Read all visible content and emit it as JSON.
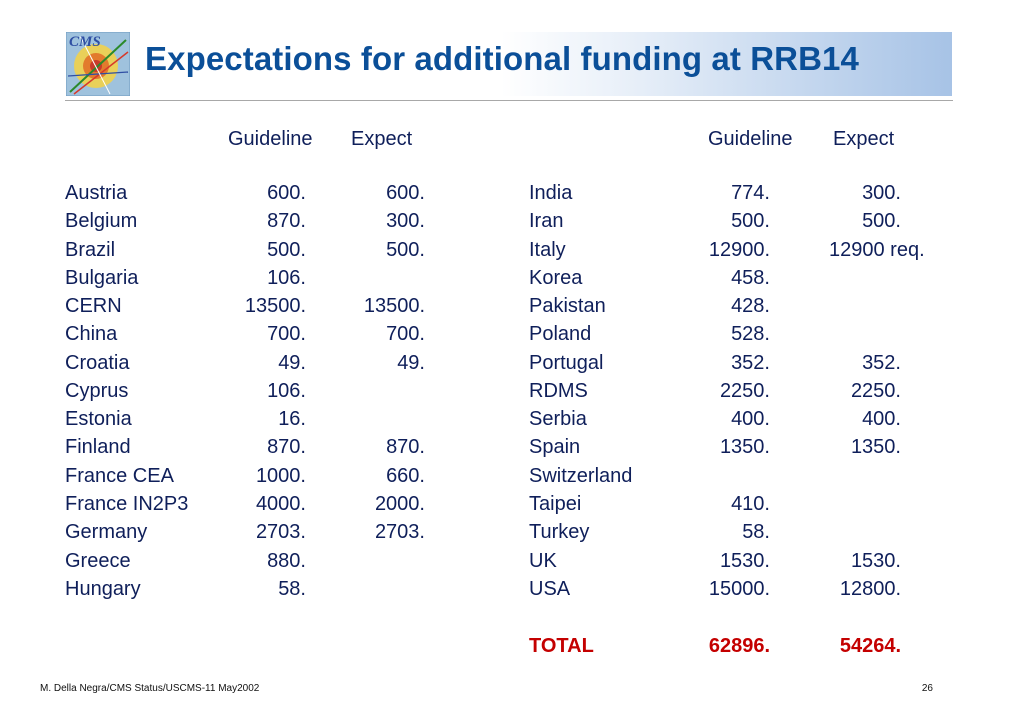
{
  "slide": {
    "title": "Expectations for additional funding at RRB14",
    "logo_text": "CMS",
    "footer": "M. Della Negra/CMS Status/USCMS-11 May2002",
    "page_number": "26"
  },
  "table": {
    "headers": {
      "guideline": "Guideline",
      "expect": "Expect"
    },
    "left": [
      {
        "country": "Austria",
        "guideline": "600.",
        "expect": "600."
      },
      {
        "country": "Belgium",
        "guideline": "870.",
        "expect": "300."
      },
      {
        "country": "Brazil",
        "guideline": "500.",
        "expect": "500."
      },
      {
        "country": "Bulgaria",
        "guideline": "106.",
        "expect": ""
      },
      {
        "country": "CERN",
        "guideline": "13500.",
        "expect": "13500."
      },
      {
        "country": "China",
        "guideline": "700.",
        "expect": "700."
      },
      {
        "country": "Croatia",
        "guideline": "49.",
        "expect": "49."
      },
      {
        "country": "Cyprus",
        "guideline": "106.",
        "expect": ""
      },
      {
        "country": "Estonia",
        "guideline": "16.",
        "expect": ""
      },
      {
        "country": "Finland",
        "guideline": "870.",
        "expect": "870."
      },
      {
        "country": "France CEA",
        "guideline": "1000.",
        "expect": "660."
      },
      {
        "country": "France IN2P3",
        "guideline": "4000.",
        "expect": "2000."
      },
      {
        "country": "Germany",
        "guideline": "2703.",
        "expect": "2703."
      },
      {
        "country": "Greece",
        "guideline": "880.",
        "expect": ""
      },
      {
        "country": "Hungary",
        "guideline": "58.",
        "expect": ""
      }
    ],
    "right": [
      {
        "country": "India",
        "guideline": "774.",
        "expect": "300."
      },
      {
        "country": "Iran",
        "guideline": "500.",
        "expect": "500."
      },
      {
        "country": "Italy",
        "guideline": "12900.",
        "expect": "12900 req."
      },
      {
        "country": "Korea",
        "guideline": "458.",
        "expect": ""
      },
      {
        "country": "Pakistan",
        "guideline": "428.",
        "expect": ""
      },
      {
        "country": "Poland",
        "guideline": "528.",
        "expect": ""
      },
      {
        "country": "Portugal",
        "guideline": "352.",
        "expect": "352."
      },
      {
        "country": "RDMS",
        "guideline": "2250.",
        "expect": "2250."
      },
      {
        "country": "Serbia",
        "guideline": "400.",
        "expect": "400."
      },
      {
        "country": "Spain",
        "guideline": "1350.",
        "expect": "1350."
      },
      {
        "country": "Switzerland",
        "guideline": "",
        "expect": ""
      },
      {
        "country": "Taipei",
        "guideline": "410.",
        "expect": ""
      },
      {
        "country": "Turkey",
        "guideline": "58.",
        "expect": ""
      },
      {
        "country": "UK",
        "guideline": "1530.",
        "expect": "1530."
      },
      {
        "country": "USA",
        "guideline": "15000.",
        "expect": "12800."
      }
    ],
    "total": {
      "label": "TOTAL",
      "guideline": "62896.",
      "expect": "54264."
    }
  }
}
